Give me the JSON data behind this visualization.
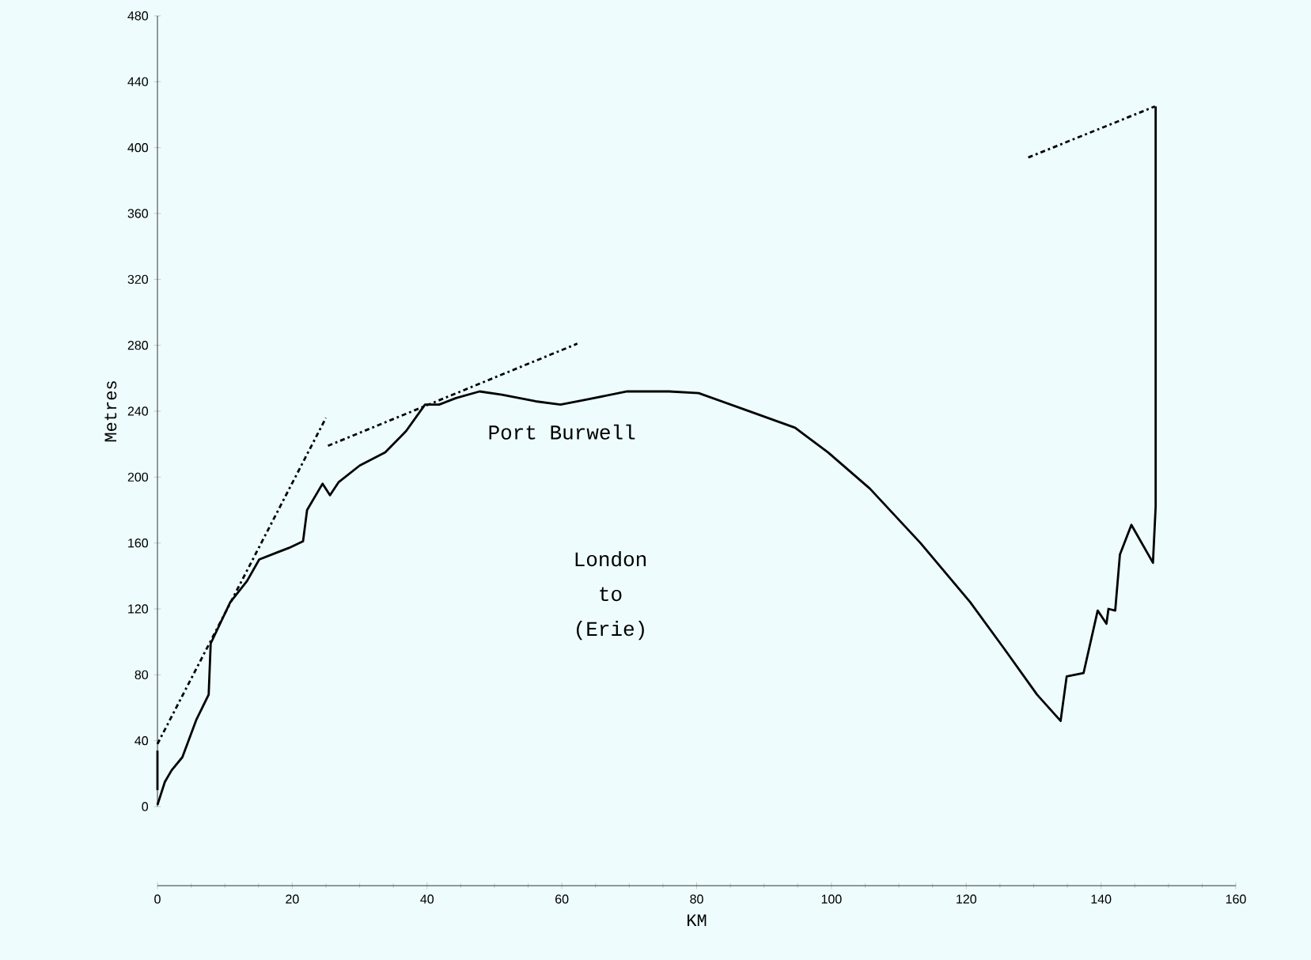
{
  "chart_data": {
    "type": "line",
    "xlabel": "KM",
    "ylabel": "Metres",
    "xlim": [
      0,
      160
    ],
    "ylim": [
      0,
      480
    ],
    "xticks": [
      0,
      20,
      40,
      60,
      80,
      100,
      120,
      140,
      160
    ],
    "yticks": [
      0,
      40,
      80,
      120,
      160,
      200,
      240,
      280,
      320,
      360,
      400,
      440,
      480
    ],
    "grid": false,
    "marker": "none",
    "series": [
      {
        "color": "#000000",
        "line_style": "solid",
        "x": [
          0,
          1.1,
          2.1,
          3.7,
          5.8,
          7.6,
          7.9,
          10.8,
          13.3,
          15.1,
          17.6,
          19.5,
          21.6,
          22.2,
          24.5,
          25.6,
          26.9,
          30,
          33.8,
          36.9,
          39.7,
          41.8,
          44.3,
          47.8,
          51.1,
          56.1,
          59.8,
          63.6,
          69.7,
          75.9,
          80.3,
          87.1,
          94.6,
          99.5,
          105.7,
          113.2,
          120.6,
          125.6,
          130.5,
          134,
          134.9,
          137.4,
          139.5,
          140.8,
          141.1,
          142.1,
          142.8,
          144.5,
          147.7,
          148.1,
          148.1
        ],
        "values": [
          1,
          15,
          22,
          30,
          53,
          68,
          99,
          124,
          137,
          150,
          154,
          157,
          161,
          180,
          196,
          189,
          197,
          207,
          215,
          228,
          244,
          244,
          248,
          252,
          250,
          246,
          244,
          247,
          252,
          252,
          251,
          241,
          230,
          215,
          193,
          160,
          124,
          96,
          68,
          52,
          79,
          81,
          119,
          111,
          120,
          119,
          153,
          171,
          148,
          182,
          425
        ]
      },
      {
        "color": "#000000",
        "line_style": "solid",
        "x": [
          0,
          0
        ],
        "values": [
          10,
          34
        ]
      },
      {
        "color": "#000000",
        "line_style": "dashed",
        "x": [
          0,
          25
        ],
        "values": [
          38,
          236
        ]
      },
      {
        "color": "#000000",
        "line_style": "dashed",
        "x": [
          25.3,
          62.3
        ],
        "values": [
          219,
          281
        ]
      },
      {
        "color": "#000000",
        "line_style": "dashed",
        "x": [
          129.2,
          148
        ],
        "values": [
          394,
          425
        ]
      }
    ],
    "annotations": [
      {
        "text": "Port Burwell",
        "x": 60,
        "y": 245
      },
      "London to (Erie)"
    ]
  }
}
